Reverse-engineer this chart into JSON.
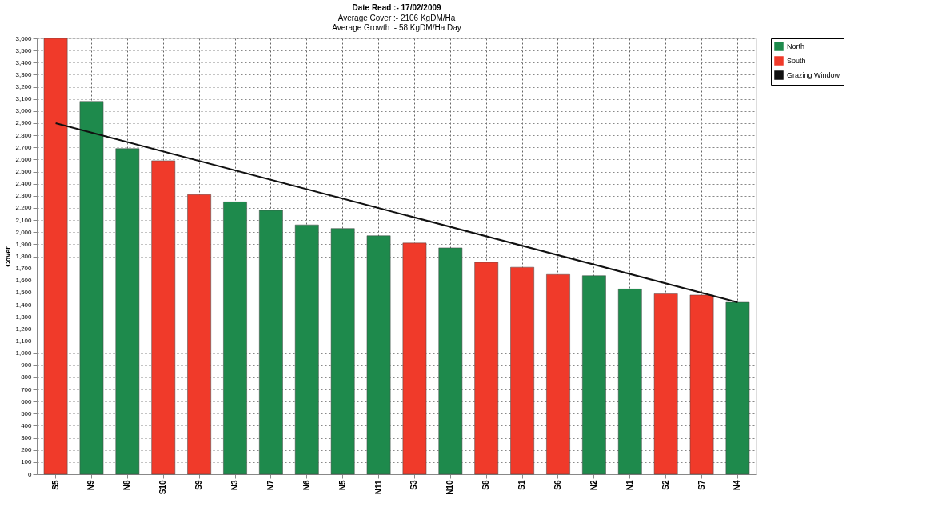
{
  "chart_data": {
    "type": "bar",
    "title": "Date Read :- 17/02/2009",
    "subtitle": [
      "Average Cover :- 2106 KgDM/Ha",
      "Average Growth :- 58 KgDM/Ha Day"
    ],
    "ylabel": "Cover",
    "categories": [
      "S5",
      "N9",
      "N8",
      "S10",
      "S9",
      "N3",
      "N7",
      "N6",
      "N5",
      "N11",
      "S3",
      "N10",
      "S8",
      "S1",
      "S6",
      "N2",
      "N1",
      "S2",
      "S7",
      "N4"
    ],
    "series": [
      {
        "name": "North",
        "color": "#1e8a4c",
        "values": [
          null,
          3080,
          2690,
          null,
          null,
          2250,
          2180,
          2060,
          2030,
          1970,
          null,
          1870,
          null,
          null,
          null,
          1640,
          1530,
          null,
          null,
          1420
        ]
      },
      {
        "name": "South",
        "color": "#f03a2a",
        "values": [
          3600,
          null,
          null,
          2590,
          2310,
          null,
          null,
          null,
          null,
          null,
          1910,
          null,
          1750,
          1710,
          1650,
          null,
          null,
          1490,
          1480,
          null
        ]
      },
      {
        "name": "Grazing Window",
        "type": "line",
        "color": "#111111",
        "x": [
          "S5",
          "N4"
        ],
        "values": [
          2900,
          1420
        ]
      }
    ],
    "ylim": [
      0,
      3600
    ],
    "yticks": [
      0,
      100,
      200,
      300,
      400,
      500,
      600,
      700,
      800,
      900,
      {
        "value": 1000,
        "label": "1,000"
      },
      {
        "value": 1100,
        "label": "1,100"
      },
      {
        "value": 1200,
        "label": "1,200"
      },
      {
        "value": 1300,
        "label": "1,300"
      },
      {
        "value": 1400,
        "label": "1,400"
      },
      {
        "value": 1500,
        "label": "1,500"
      },
      {
        "value": 1600,
        "label": "1,600"
      },
      {
        "value": 1700,
        "label": "1,700"
      },
      {
        "value": 1800,
        "label": "1,800"
      },
      {
        "value": 1900,
        "label": "1,900"
      },
      {
        "value": 2000,
        "label": "2,000"
      },
      {
        "value": 2100,
        "label": "2,100"
      },
      {
        "value": 2200,
        "label": "2,200"
      },
      {
        "value": 2300,
        "label": "2,300"
      },
      {
        "value": 2400,
        "label": "2,400"
      },
      {
        "value": 2500,
        "label": "2,500"
      },
      {
        "value": 2600,
        "label": "2,600"
      },
      {
        "value": 2700,
        "label": "2,700"
      },
      {
        "value": 2800,
        "label": "2,800"
      },
      {
        "value": 2900,
        "label": "2,900"
      },
      {
        "value": 3000,
        "label": "3,000"
      },
      {
        "value": 3100,
        "label": "3,100"
      },
      {
        "value": 3200,
        "label": "3,200"
      },
      {
        "value": 3300,
        "label": "3,300"
      },
      {
        "value": 3400,
        "label": "3,400"
      },
      {
        "value": 3500,
        "label": "3,500"
      },
      {
        "value": 3600,
        "label": "3,600"
      }
    ],
    "grid": true,
    "legend": "top right"
  }
}
